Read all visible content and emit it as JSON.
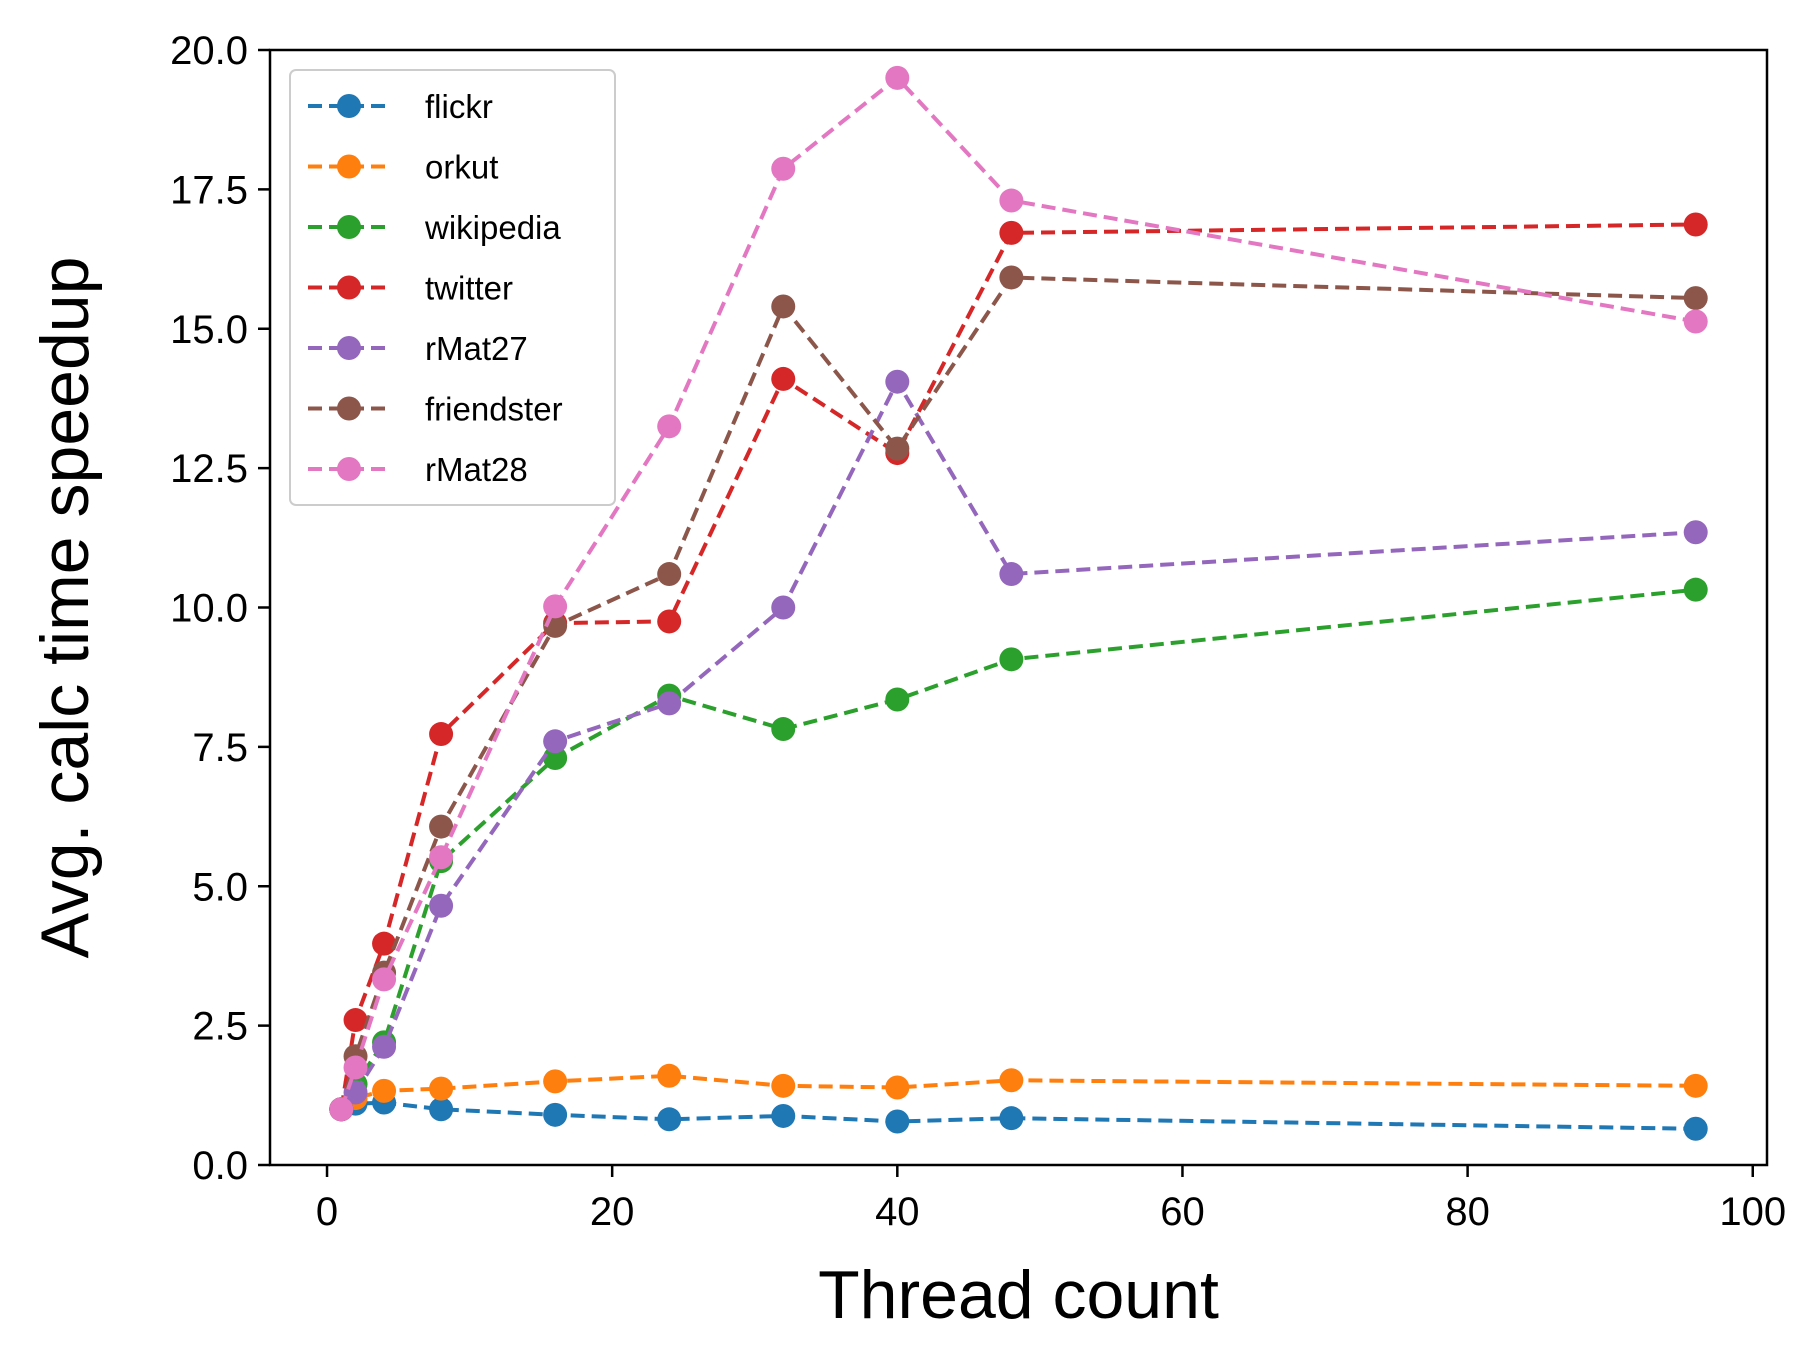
{
  "chart_data": {
    "type": "line",
    "title": "",
    "xlabel": "Thread count",
    "ylabel": "Avg. calc time speedup",
    "xlim": [
      -4,
      101
    ],
    "ylim": [
      0,
      20
    ],
    "xticks": [
      0,
      20,
      40,
      60,
      80,
      100
    ],
    "yticks": [
      0.0,
      2.5,
      5.0,
      7.5,
      10.0,
      12.5,
      15.0,
      17.5,
      20.0
    ],
    "xtick_labels": [
      "0",
      "20",
      "40",
      "60",
      "80",
      "100"
    ],
    "ytick_labels": [
      "0.0",
      "2.5",
      "5.0",
      "7.5",
      "10.0",
      "12.5",
      "15.0",
      "17.5",
      "20.0"
    ],
    "grid": false,
    "legend_position": "top-left",
    "line_style": "dashed",
    "marker": "circle",
    "x": [
      1,
      2,
      4,
      8,
      16,
      24,
      32,
      40,
      48,
      96
    ],
    "series": [
      {
        "name": "flickr",
        "color": "#1f77b4",
        "values": [
          1.0,
          1.1,
          1.12,
          1.0,
          0.9,
          0.82,
          0.88,
          0.78,
          0.84,
          0.65
        ]
      },
      {
        "name": "orkut",
        "color": "#ff7f0e",
        "values": [
          1.0,
          1.2,
          1.33,
          1.37,
          1.5,
          1.6,
          1.42,
          1.39,
          1.52,
          1.42
        ]
      },
      {
        "name": "wikipedia",
        "color": "#2ca02c",
        "values": [
          1.0,
          1.45,
          2.2,
          5.45,
          7.3,
          8.42,
          7.82,
          8.35,
          9.07,
          10.32
        ]
      },
      {
        "name": "twitter",
        "color": "#d62728",
        "values": [
          1.0,
          2.6,
          3.97,
          7.73,
          9.72,
          9.75,
          14.1,
          12.77,
          16.72,
          16.87
        ]
      },
      {
        "name": "rMat27",
        "color": "#9467bd",
        "values": [
          1.0,
          1.3,
          2.12,
          4.65,
          7.6,
          8.28,
          10.0,
          14.05,
          10.6,
          11.35
        ]
      },
      {
        "name": "friendster",
        "color": "#8c564b",
        "values": [
          1.0,
          1.95,
          3.45,
          6.07,
          9.67,
          10.6,
          15.4,
          12.85,
          15.92,
          15.55
        ]
      },
      {
        "name": "rMat28",
        "color": "#e377c2",
        "values": [
          1.0,
          1.75,
          3.33,
          5.52,
          10.02,
          13.25,
          17.87,
          19.5,
          17.3,
          15.13
        ]
      }
    ]
  }
}
